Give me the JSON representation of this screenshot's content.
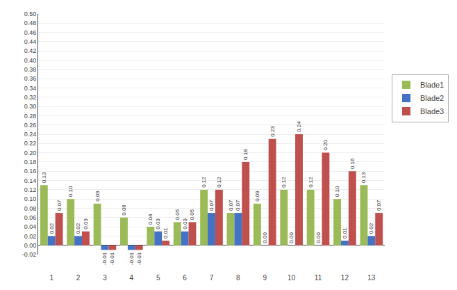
{
  "chart_data": {
    "type": "bar",
    "categories": [
      1,
      2,
      3,
      4,
      5,
      6,
      7,
      8,
      9,
      10,
      11,
      12,
      13
    ],
    "series": [
      {
        "name": "Blade1",
        "color": "#9BBB59",
        "values": [
          0.13,
          0.1,
          0.09,
          0.06,
          0.04,
          0.05,
          0.12,
          0.07,
          0.09,
          0.12,
          0.12,
          0.1,
          0.13
        ],
        "value_labels": [
          "0.13",
          "0.10",
          "0.09",
          "0.06",
          "0.04",
          "0.05",
          "0.12",
          "0.07",
          "0.09",
          "0.12",
          "0.12",
          "0.10",
          "0.13"
        ]
      },
      {
        "name": "Blade2",
        "color": "#4472C4",
        "values": [
          0.02,
          0.02,
          -0.01,
          -0.01,
          0.03,
          0.03,
          0.07,
          0.07,
          0.0,
          0.0,
          0.0,
          0.01,
          0.02
        ],
        "value_labels": [
          "0.02",
          "0.02",
          "-0.01",
          "-0.01",
          "0.03",
          "0.03",
          "0.07",
          "0.07",
          "0.00",
          "0.00",
          "0.00",
          "0.01",
          "0.02"
        ]
      },
      {
        "name": "Blade3",
        "color": "#C0504D",
        "values": [
          0.07,
          0.03,
          -0.01,
          -0.01,
          0.01,
          0.05,
          0.12,
          0.18,
          0.23,
          0.24,
          0.2,
          0.16,
          0.07
        ],
        "value_labels": [
          "0.07",
          "0.03",
          "-0.01",
          "-0.01",
          "0.01",
          "0.05",
          "0.12",
          "0.18",
          "0.23",
          "0.24",
          "0.20",
          "0.16",
          "0.07"
        ]
      }
    ],
    "ylim": [
      -0.02,
      0.5
    ],
    "yticks": [
      -0.02,
      {
        "value": 0,
        "label": "0.00"
      },
      0.02,
      0.04,
      0.06,
      0.08,
      {
        "value": 0.1,
        "label": "0.10"
      },
      0.12,
      0.14,
      0.16,
      0.18,
      {
        "value": 0.2,
        "label": "0.20"
      },
      0.22,
      0.24,
      0.26,
      0.28,
      {
        "value": 0.3,
        "label": "0.30"
      },
      0.32,
      0.34,
      0.36,
      0.38,
      {
        "value": 0.4,
        "label": "0.40"
      },
      0.42,
      0.44,
      0.46,
      0.48,
      {
        "value": 0.5,
        "label": "0.50"
      }
    ],
    "grid": true,
    "legend": "right",
    "data_labels": true
  }
}
